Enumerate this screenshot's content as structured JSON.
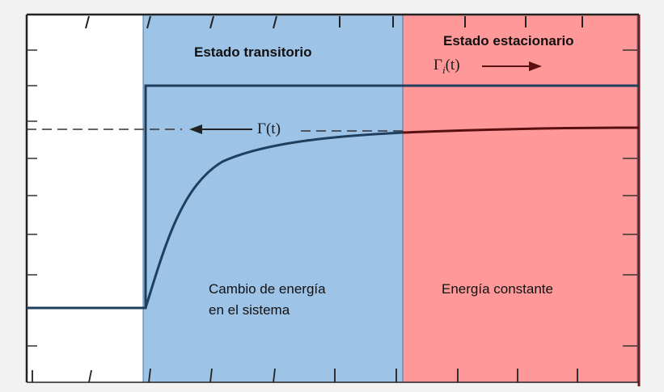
{
  "colors": {
    "background": "#f2f2f2",
    "transient_region": "#9dc3e6",
    "steady_region": "#ff9999",
    "curve": "#1f3f5f",
    "steady_curve": "#5a1010"
  },
  "regions": {
    "transient": {
      "title": "Estado transitorio",
      "description_line1": "Cambio de energía",
      "description_line2": "en el sistema"
    },
    "steady": {
      "title": "Estado estacionario",
      "description": "Energía constante"
    }
  },
  "annotations": {
    "gamma_label": "Γ(t)",
    "gamma_i_base": "Γ",
    "gamma_i_sub": "i",
    "gamma_i_arg": "(t)"
  }
}
